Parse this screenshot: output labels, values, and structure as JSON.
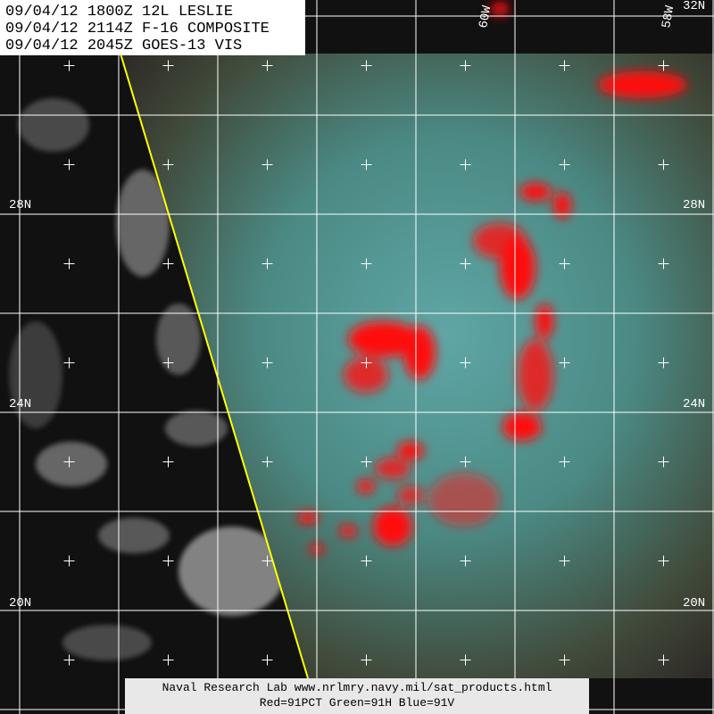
{
  "header": {
    "lines": [
      "09/04/12 1800Z 12L LESLIE",
      "09/04/12 2114Z F-16 COMPOSITE",
      "09/04/12 2045Z GOES-13 VIS"
    ]
  },
  "lat_labels": [
    "32N",
    "28N",
    "24N",
    "20N"
  ],
  "lon_labels": [
    "60W",
    "58W"
  ],
  "footer": {
    "lines": [
      "Naval Research Lab  www.nrlmry.navy.mil/sat_products.html",
      "Red=91PCT  Green=91H  Blue=91V"
    ]
  }
}
